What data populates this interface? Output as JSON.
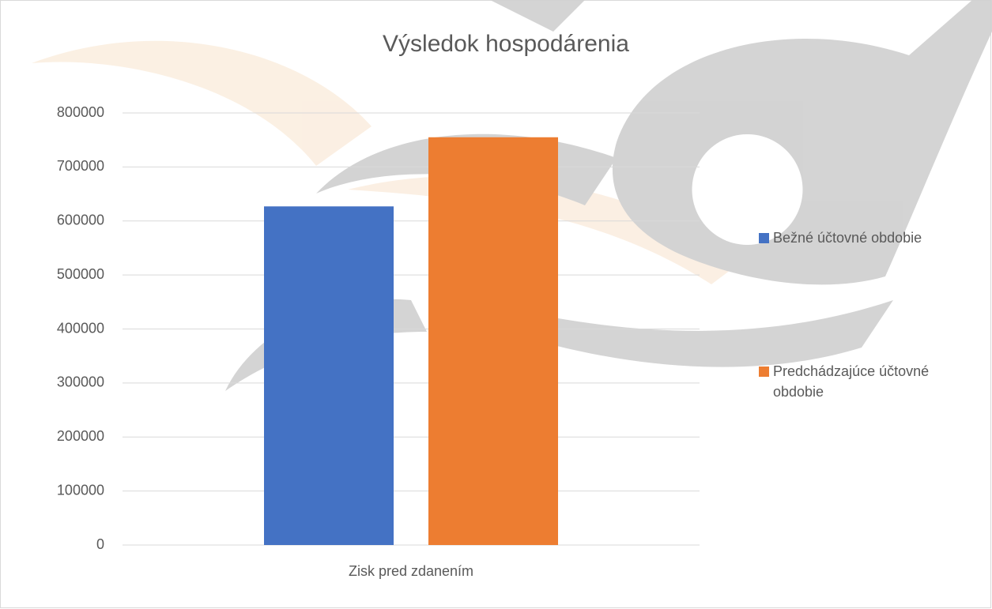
{
  "chart_data": {
    "type": "bar",
    "title": "Výsledok hospodárenia",
    "categories": [
      "Zisk pred zdanením"
    ],
    "series": [
      {
        "name": "Bežné účtovné obdobie",
        "color": "#4472c4",
        "values": [
          627000
        ]
      },
      {
        "name": "Predchádzajúce účtovné obdobie",
        "color": "#ed7d31",
        "values": [
          755000
        ]
      }
    ],
    "ylim": [
      0,
      800000
    ],
    "yticks": [
      0,
      100000,
      200000,
      300000,
      400000,
      500000,
      600000,
      700000,
      800000
    ],
    "grid": true,
    "legend": "right"
  }
}
